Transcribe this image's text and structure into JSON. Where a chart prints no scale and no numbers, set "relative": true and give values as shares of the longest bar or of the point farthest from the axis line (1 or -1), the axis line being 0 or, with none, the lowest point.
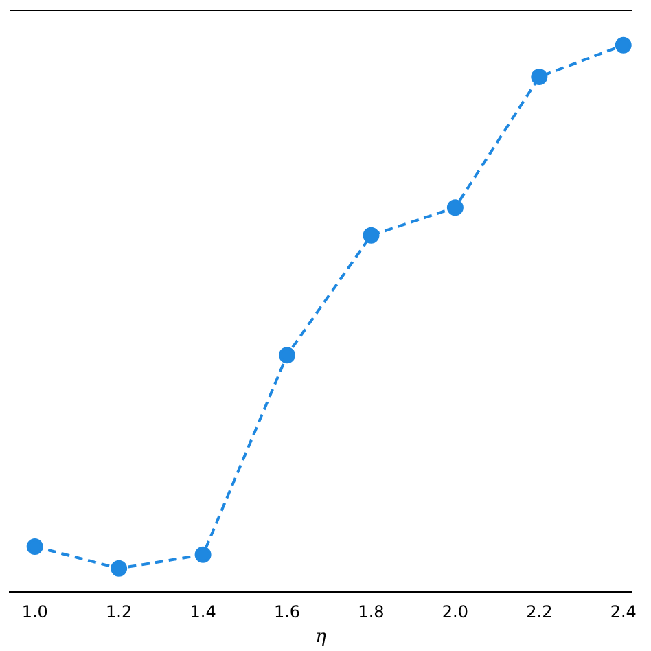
{
  "chart_data": {
    "type": "line",
    "xlabel": "η",
    "relative": true,
    "x": [
      1.0,
      1.2,
      1.4,
      1.6,
      1.8,
      2.0,
      2.2,
      2.4
    ],
    "xlim": [
      0.94,
      2.42
    ],
    "xticks": [
      {
        "value": 1.0,
        "label": "1.0"
      },
      {
        "value": 1.2,
        "label": "1.2"
      },
      {
        "value": 1.4,
        "label": "1.4"
      },
      {
        "value": 1.6,
        "label": "1.6"
      },
      {
        "value": 1.8,
        "label": "1.8"
      },
      {
        "value": 2.0,
        "label": "2.0"
      },
      {
        "value": 2.2,
        "label": "2.2"
      },
      {
        "value": 2.4,
        "label": "2.4"
      }
    ],
    "series": [
      {
        "color": "#1f88e0",
        "values": [
          0.083,
          0.043,
          0.068,
          0.433,
          0.652,
          0.703,
          0.942,
          1.0
        ]
      }
    ],
    "marker": "circle",
    "line_style": "dashed",
    "grid": false,
    "legend": false
  }
}
